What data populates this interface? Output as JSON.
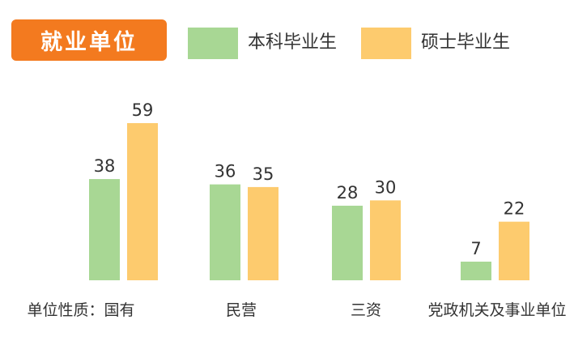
{
  "title": "就业单位",
  "colors": {
    "title_bg": "#F37A1F",
    "series_0": "#A8D794",
    "series_1": "#FDCB6E"
  },
  "legend": [
    "本科毕业生",
    "硕士毕业生"
  ],
  "chart_data": {
    "type": "bar",
    "title": "就业单位",
    "categories": [
      "单位性质：国有",
      "民营",
      "三资",
      "党政机关及事业单位"
    ],
    "series": [
      {
        "name": "本科毕业生",
        "values": [
          38,
          36,
          28,
          7
        ]
      },
      {
        "name": "硕士毕业生",
        "values": [
          59,
          35,
          30,
          22
        ]
      }
    ],
    "xlabel": "",
    "ylabel": "",
    "ylim": [
      0,
      60
    ],
    "grid": false,
    "legend_position": "top"
  }
}
